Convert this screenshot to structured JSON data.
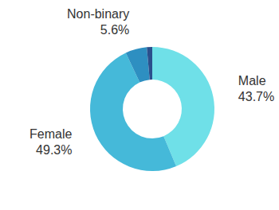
{
  "chart_data": {
    "type": "pie",
    "categories": [
      "Male",
      "Female",
      "Non-binary",
      null
    ],
    "values": [
      43.7,
      49.3,
      5.6,
      1.4
    ],
    "value_labels": [
      "43.7%",
      "49.3%",
      "5.6%",
      null
    ],
    "colors": [
      "#6fe0e8",
      "#45b9d9",
      "#2e8fc1",
      "#2b4f8c"
    ],
    "data_labels": true
  }
}
